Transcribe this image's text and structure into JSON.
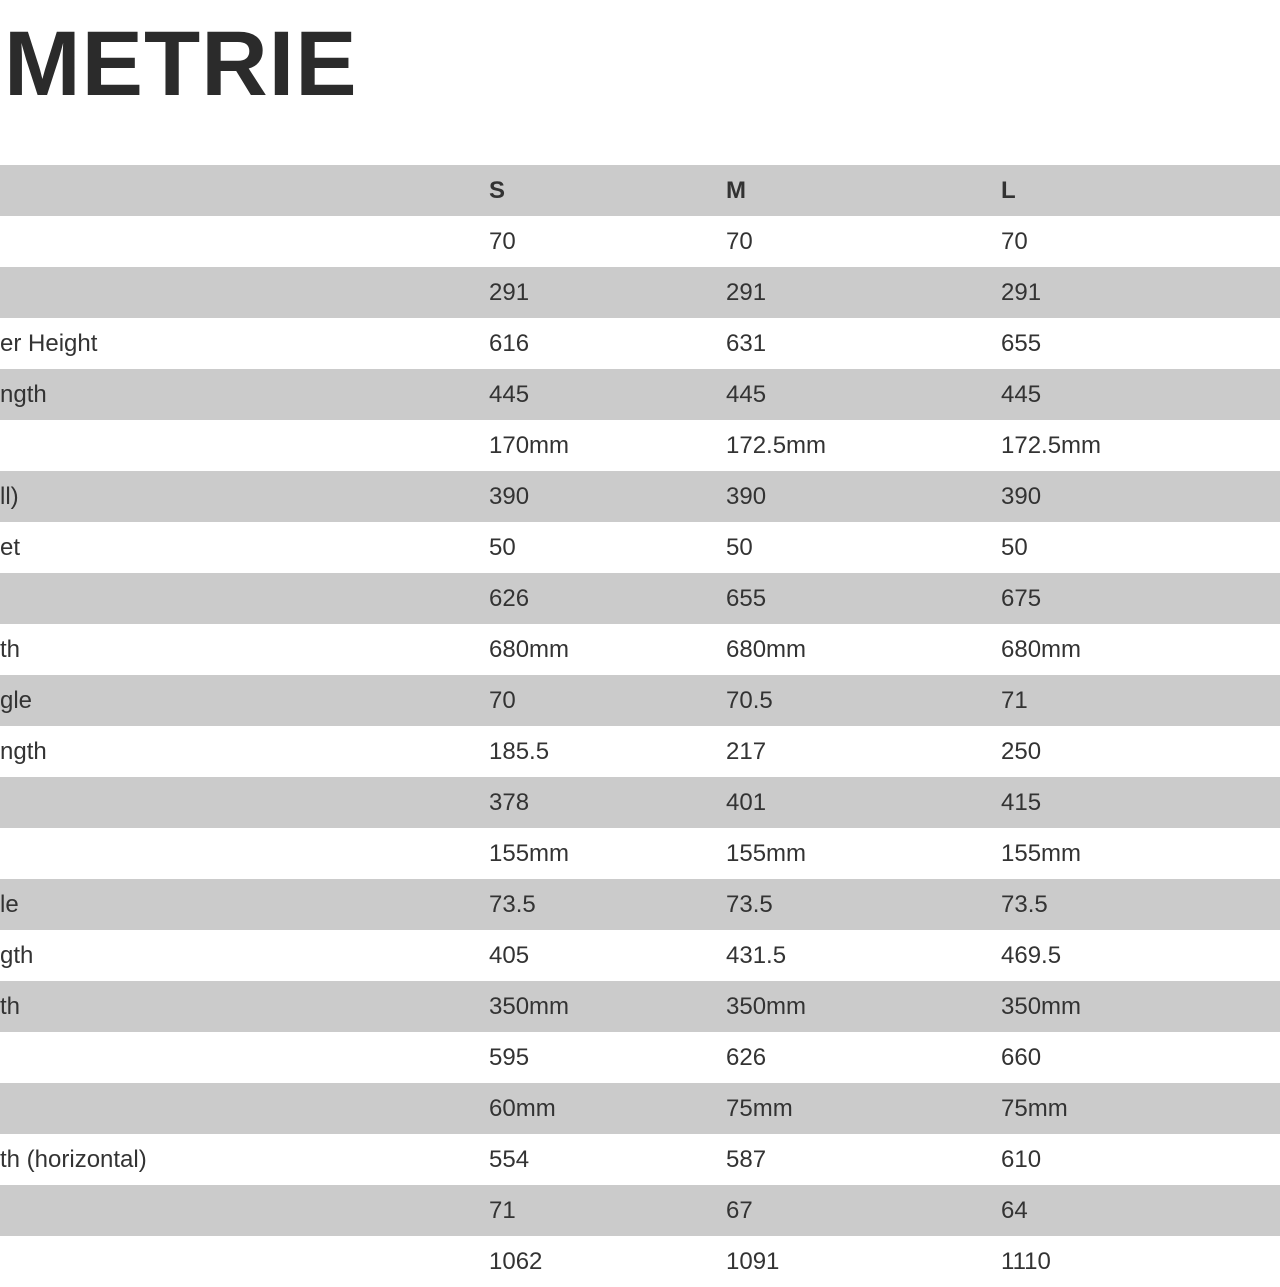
{
  "title": "METRIE",
  "table": {
    "header": [
      "",
      "S",
      "M",
      "L",
      ""
    ],
    "rows": [
      {
        "label": "",
        "values": [
          "70",
          "70",
          "70"
        ]
      },
      {
        "label": "",
        "values": [
          "291",
          "291",
          "291"
        ]
      },
      {
        "label": "er Height",
        "values": [
          "616",
          "631",
          "655"
        ]
      },
      {
        "label": "ngth",
        "values": [
          "445",
          "445",
          "445"
        ]
      },
      {
        "label": "",
        "values": [
          "170mm",
          "172.5mm",
          "172.5mm"
        ]
      },
      {
        "label": "ll)",
        "values": [
          "390",
          "390",
          "390"
        ]
      },
      {
        "label": "et",
        "values": [
          "50",
          "50",
          "50"
        ]
      },
      {
        "label": "",
        "values": [
          "626",
          "655",
          "675"
        ]
      },
      {
        "label": "th",
        "values": [
          "680mm",
          "680mm",
          "680mm"
        ]
      },
      {
        "label": "gle",
        "values": [
          "70",
          "70.5",
          "71"
        ]
      },
      {
        "label": "ngth",
        "values": [
          "185.5",
          "217",
          "250"
        ]
      },
      {
        "label": "",
        "values": [
          "378",
          "401",
          "415"
        ]
      },
      {
        "label": "",
        "values": [
          "155mm",
          "155mm",
          "155mm"
        ]
      },
      {
        "label": "le",
        "values": [
          "73.5",
          "73.5",
          "73.5"
        ]
      },
      {
        "label": "gth",
        "values": [
          "405",
          "431.5",
          "469.5"
        ]
      },
      {
        "label": "th",
        "values": [
          "350mm",
          "350mm",
          "350mm"
        ]
      },
      {
        "label": "",
        "values": [
          "595",
          "626",
          "660"
        ]
      },
      {
        "label": "",
        "values": [
          "60mm",
          "75mm",
          "75mm"
        ]
      },
      {
        "label": "th (horizontal)",
        "values": [
          "554",
          "587",
          "610"
        ]
      },
      {
        "label": "",
        "values": [
          "71",
          "67",
          "64"
        ]
      },
      {
        "label": "",
        "values": [
          "1062",
          "1091",
          "1110"
        ]
      }
    ]
  }
}
